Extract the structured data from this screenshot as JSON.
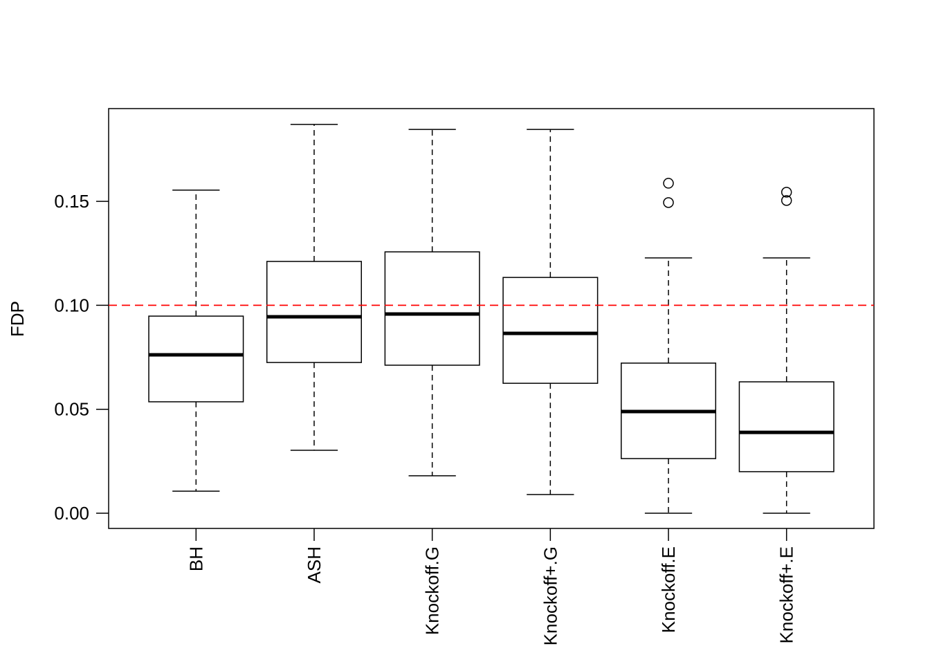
{
  "chart_data": {
    "type": "boxplot",
    "title": "",
    "xlabel": "",
    "ylabel": "FDP",
    "ylim": [
      -0.0073,
      0.1946
    ],
    "yticks": [
      0.0,
      0.05,
      0.1,
      0.15
    ],
    "ytick_labels": [
      "0.00",
      "0.05",
      "0.10",
      "0.15"
    ],
    "reference_line": {
      "value": 0.1,
      "color": "#ff0000",
      "style": "dashed"
    },
    "categories": [
      "BH",
      "ASH",
      "Knockoff.G",
      "Knockoff+.G",
      "Knockoff.E",
      "Knockoff+.E"
    ],
    "boxes": [
      {
        "name": "BH",
        "min": 0.0106,
        "q1": 0.0536,
        "median": 0.0762,
        "q3": 0.0948,
        "max": 0.1554,
        "outliers": []
      },
      {
        "name": "ASH",
        "min": 0.0303,
        "q1": 0.0725,
        "median": 0.0945,
        "q3": 0.1211,
        "max": 0.187,
        "outliers": []
      },
      {
        "name": "Knockoff.G",
        "min": 0.018,
        "q1": 0.0712,
        "median": 0.0958,
        "q3": 0.1257,
        "max": 0.1846,
        "outliers": []
      },
      {
        "name": "Knockoff+.G",
        "min": 0.009,
        "q1": 0.0625,
        "median": 0.0865,
        "q3": 0.1134,
        "max": 0.1846,
        "outliers": []
      },
      {
        "name": "Knockoff.E",
        "min": 0.0,
        "q1": 0.0263,
        "median": 0.0489,
        "q3": 0.0722,
        "max": 0.1228,
        "outliers": [
          0.1587,
          0.1494
        ]
      },
      {
        "name": "Knockoff+.E",
        "min": 0.0,
        "q1": 0.02,
        "median": 0.0389,
        "q3": 0.0632,
        "max": 0.1228,
        "outliers": [
          0.1544,
          0.1504
        ]
      }
    ]
  }
}
